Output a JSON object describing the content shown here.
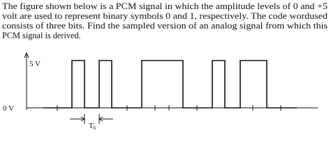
{
  "problem": {
    "lines": [
      "The figure shown below is a PCM signal in which the amplitude levels of 0 and +5",
      "volt are used to represent binary symbols 0 and 1, respectively. The code wordused",
      "consists of three bits. Find the sampled version of an analog signal from which this",
      "PCM signal is derived."
    ]
  },
  "figure": {
    "high_level": "5 V",
    "low_level": "0 V",
    "bit_period": "T",
    "bit_period_subscript": "b"
  }
}
